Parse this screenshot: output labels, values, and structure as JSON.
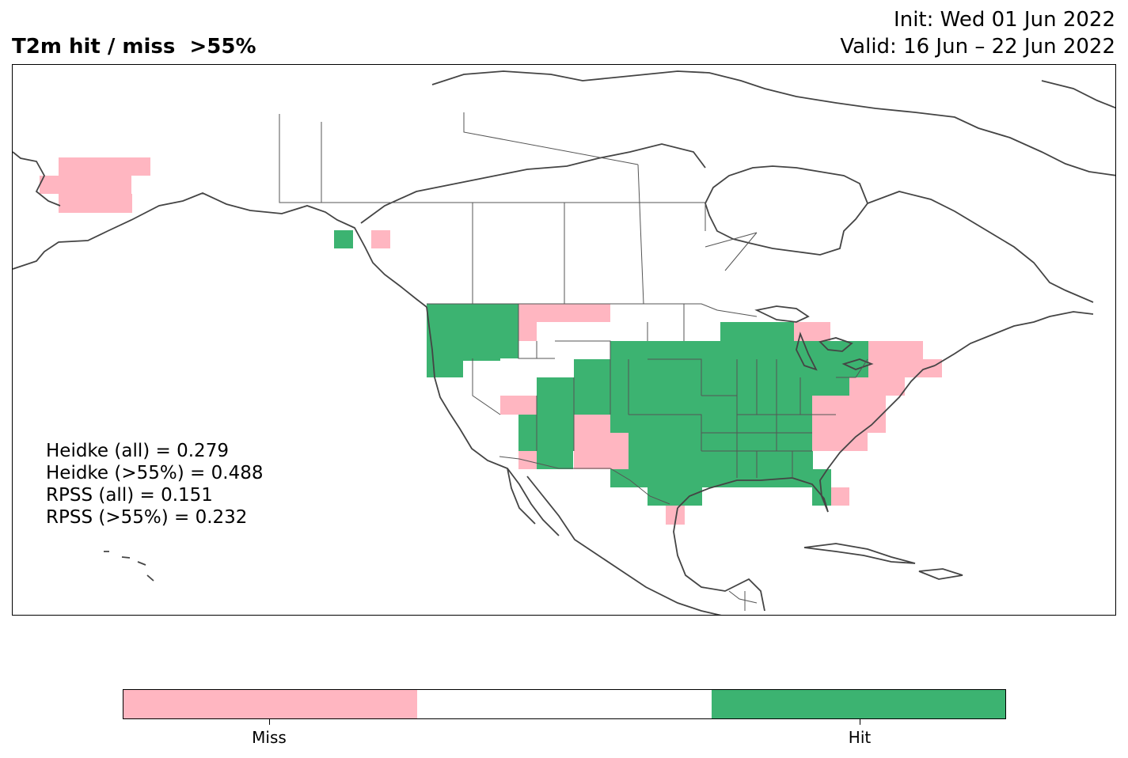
{
  "title": "T2m hit / miss  >55%",
  "init_label": "Init: Wed 01 Jun 2022",
  "valid_label": "Valid: 16 Jun – 22 Jun 2022",
  "stats": [
    "Heidke (all) = 0.279",
    "Heidke (>55%) = 0.488",
    "RPSS (all) = 0.151",
    "RPSS (>55%) = 0.232"
  ],
  "colors": {
    "hit": "#3cb371",
    "miss": "#ffb6c1",
    "neutral": "#ffffff",
    "coast": "#444444",
    "border": "#555555"
  },
  "colorbar": {
    "segments": [
      "miss",
      "neutral",
      "hit"
    ],
    "labels": [
      "Miss",
      "Hit"
    ]
  },
  "map_cells": {
    "hit": [],
    "miss": []
  }
}
